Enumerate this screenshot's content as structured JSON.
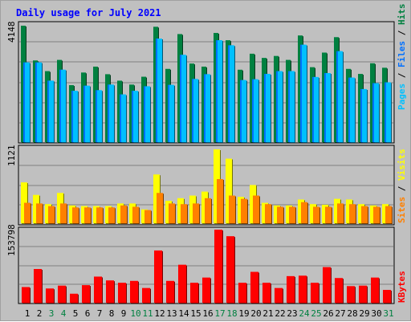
{
  "chart_data": [
    {
      "type": "bar",
      "title": "Daily usage for July 2021",
      "categories": [
        "1",
        "2",
        "3",
        "4",
        "5",
        "6",
        "7",
        "8",
        "9",
        "10",
        "11",
        "12",
        "13",
        "14",
        "15",
        "16",
        "17",
        "18",
        "19",
        "20",
        "21",
        "22",
        "23",
        "24",
        "25",
        "26",
        "27",
        "28",
        "29",
        "30",
        "31"
      ],
      "weekend_days": [
        "3",
        "4",
        "10",
        "11",
        "17",
        "18",
        "24",
        "25",
        "31"
      ],
      "y_max_label": "4148",
      "ylim": [
        0,
        4148
      ],
      "right_label_parts": [
        {
          "text": "Pages",
          "color": "#00c0ff"
        },
        {
          "text": " / ",
          "color": "#000000"
        },
        {
          "text": "Files",
          "color": "#0070ff"
        },
        {
          "text": " / ",
          "color": "#000000"
        },
        {
          "text": "Hits",
          "color": "#008040"
        }
      ],
      "series": [
        {
          "name": "Hits",
          "color": "#008040",
          "values": [
            4148,
            2910,
            2530,
            2930,
            2030,
            2480,
            2690,
            2420,
            2190,
            2050,
            2330,
            4110,
            2610,
            3850,
            2800,
            2690,
            3890,
            3630,
            2580,
            3150,
            3000,
            3070,
            2930,
            3800,
            2670,
            3190,
            3740,
            2610,
            2430,
            2810,
            2650
          ]
        },
        {
          "name": "Files",
          "color": "#0070ff",
          "values": [
            2840,
            2840,
            2190,
            2580,
            1830,
            2010,
            1850,
            2050,
            1700,
            1830,
            1990,
            3690,
            2040,
            3110,
            2250,
            2420,
            3630,
            3450,
            2210,
            2240,
            2430,
            2530,
            2530,
            3470,
            2320,
            2460,
            3240,
            2300,
            1890,
            2100,
            2130
          ]
        },
        {
          "name": "Pages",
          "color": "#00c0ff",
          "values": [
            2840,
            2840,
            2190,
            2580,
            1830,
            2010,
            1850,
            2050,
            1700,
            1830,
            1990,
            3690,
            2040,
            3110,
            2250,
            2420,
            3630,
            3450,
            2210,
            2240,
            2430,
            2530,
            2530,
            3470,
            2320,
            2460,
            3240,
            2300,
            1890,
            2100,
            2130
          ]
        }
      ]
    },
    {
      "type": "bar",
      "y_max_label": "1121",
      "ylim": [
        0,
        1121
      ],
      "right_label_parts": [
        {
          "text": "Sites",
          "color": "#ff8000"
        },
        {
          "text": " / ",
          "color": "#000000"
        },
        {
          "text": "Visits",
          "color": "#ffff00"
        }
      ],
      "series": [
        {
          "name": "Visits",
          "color": "#ffff00",
          "values": [
            620,
            430,
            290,
            460,
            270,
            260,
            260,
            260,
            300,
            300,
            210,
            740,
            340,
            380,
            420,
            480,
            1121,
            980,
            400,
            580,
            310,
            270,
            270,
            360,
            290,
            280,
            370,
            360,
            290,
            270,
            290
          ]
        },
        {
          "name": "Sites",
          "color": "#ff8000",
          "values": [
            310,
            300,
            260,
            300,
            240,
            240,
            240,
            240,
            270,
            250,
            200,
            460,
            300,
            290,
            300,
            380,
            670,
            420,
            370,
            420,
            290,
            250,
            250,
            320,
            250,
            250,
            300,
            290,
            260,
            250,
            260
          ]
        }
      ]
    },
    {
      "type": "bar",
      "y_max_label": "153798",
      "ylim": [
        0,
        153798
      ],
      "right_label_parts": [
        {
          "text": "KBytes",
          "color": "#ff0000"
        }
      ],
      "series": [
        {
          "name": "KBytes",
          "color": "#ff0000",
          "values": [
            33000,
            71000,
            30000,
            36000,
            19000,
            37000,
            55000,
            47000,
            42000,
            46000,
            31000,
            110000,
            46000,
            80000,
            42000,
            53000,
            153798,
            140000,
            42000,
            65000,
            42000,
            31000,
            56000,
            57000,
            42000,
            75000,
            52000,
            35000,
            36000,
            53000,
            27000
          ]
        }
      ]
    }
  ]
}
